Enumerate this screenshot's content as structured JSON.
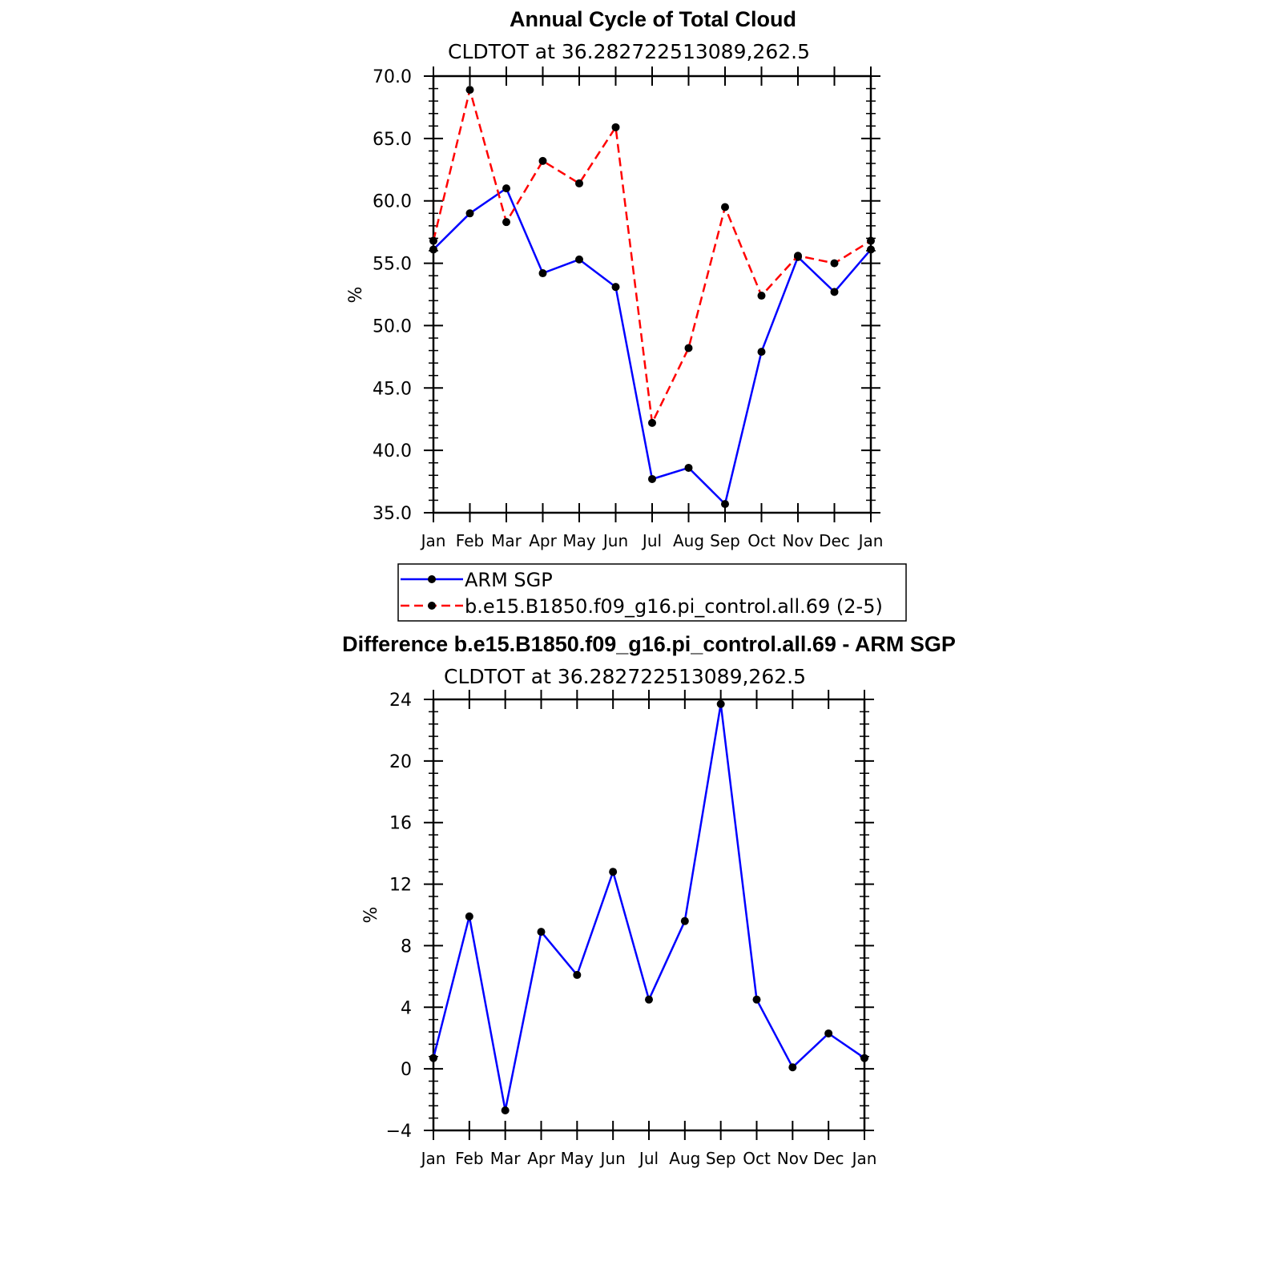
{
  "chart_data": [
    {
      "type": "line",
      "title": "Annual Cycle of Total Cloud",
      "subtitle": "CLDTOT at 36.282722513089,262.5",
      "ylabel": "%",
      "ylim": [
        35,
        70
      ],
      "yticks": [
        "35.0",
        "40.0",
        "45.0",
        "50.0",
        "55.0",
        "60.0",
        "65.0",
        "70.0"
      ],
      "categories": [
        "Jan",
        "Feb",
        "Mar",
        "Apr",
        "May",
        "Jun",
        "Jul",
        "Aug",
        "Sep",
        "Oct",
        "Nov",
        "Dec",
        "Jan"
      ],
      "grid": false,
      "legend_position": "below",
      "series": [
        {
          "name": "ARM SGP",
          "color": "#0000ff",
          "style": "solid",
          "values": [
            56.1,
            59.0,
            61.0,
            54.2,
            55.3,
            53.1,
            37.7,
            38.6,
            35.7,
            47.9,
            55.5,
            52.7,
            56.1
          ]
        },
        {
          "name": "b.e15.B1850.f09_g16.pi_control.all.69 (2-5)",
          "color": "#ff0000",
          "style": "dashed",
          "values": [
            56.8,
            68.9,
            58.3,
            63.2,
            61.4,
            65.9,
            42.2,
            48.2,
            59.5,
            52.4,
            55.6,
            55.0,
            56.8
          ]
        }
      ]
    },
    {
      "type": "line",
      "title": "Difference b.e15.B1850.f09_g16.pi_control.all.69 - ARM SGP",
      "subtitle": "CLDTOT at 36.282722513089,262.5",
      "ylabel": "%",
      "ylim": [
        -4,
        24
      ],
      "yticks": [
        "−4",
        "0",
        "4",
        "8",
        "12",
        "16",
        "20",
        "24"
      ],
      "categories": [
        "Jan",
        "Feb",
        "Mar",
        "Apr",
        "May",
        "Jun",
        "Jul",
        "Aug",
        "Sep",
        "Oct",
        "Nov",
        "Dec",
        "Jan"
      ],
      "grid": false,
      "series": [
        {
          "color": "#0000ff",
          "style": "solid",
          "values": [
            0.7,
            9.9,
            -2.7,
            8.9,
            6.1,
            12.8,
            4.5,
            9.6,
            23.7,
            4.5,
            0.1,
            2.3,
            0.7
          ]
        }
      ]
    }
  ]
}
